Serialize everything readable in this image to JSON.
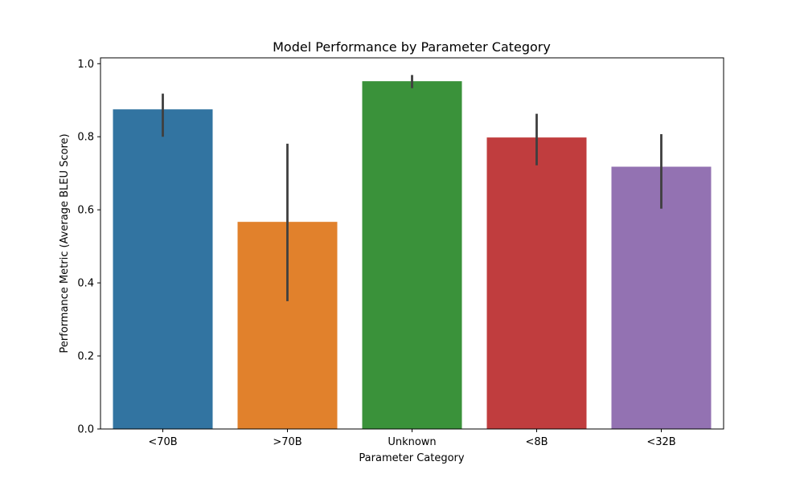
{
  "chart_data": {
    "type": "bar",
    "title": "Model Performance by Parameter Category",
    "xlabel": "Parameter Category",
    "ylabel": "Performance Metric (Average BLEU Score)",
    "categories": [
      "<70B",
      ">70B",
      "Unknown",
      "<8B",
      "<32B"
    ],
    "values": [
      0.875,
      0.567,
      0.952,
      0.798,
      0.718
    ],
    "error_low": [
      0.8,
      0.35,
      0.933,
      0.722,
      0.603
    ],
    "error_high": [
      0.918,
      0.781,
      0.969,
      0.863,
      0.807
    ],
    "colors": [
      "#3274a1",
      "#e1812c",
      "#3a923a",
      "#c03d3e",
      "#9372b2"
    ],
    "error_color": "#3f3f3f",
    "ylim": [
      0,
      1.016
    ],
    "yticks": [
      0.0,
      0.2,
      0.4,
      0.6,
      0.8,
      1.0
    ],
    "ytick_labels": [
      "0.0",
      "0.2",
      "0.4",
      "0.6",
      "0.8",
      "1.0"
    ],
    "grid": false,
    "legend": "none"
  }
}
